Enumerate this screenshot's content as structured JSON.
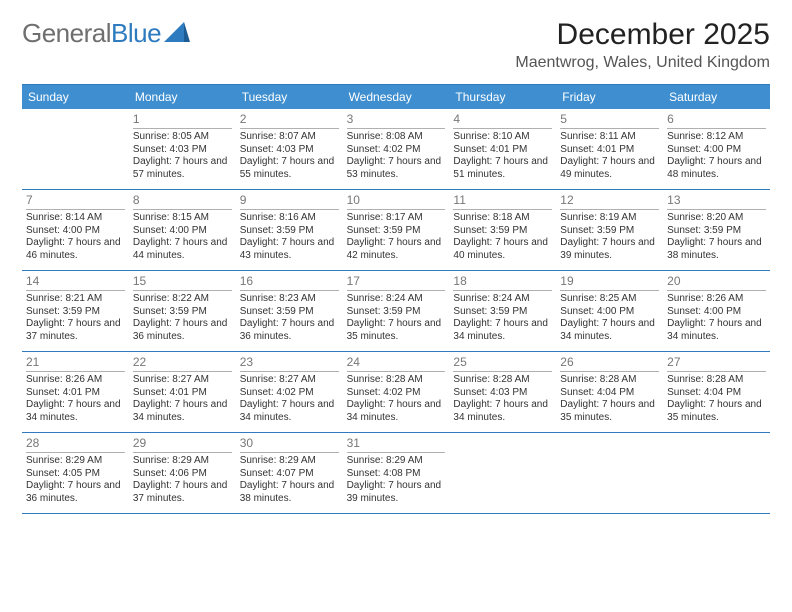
{
  "brand": {
    "part1": "General",
    "part2": "Blue"
  },
  "title": "December 2025",
  "location": "Maentwrog, Wales, United Kingdom",
  "colors": {
    "header_bg": "#3f8fd0",
    "header_text": "#ffffff",
    "rule": "#2f7bbf",
    "daynum": "#777777",
    "body_text": "#333333",
    "logo_gray": "#6f6f6f",
    "logo_blue": "#2f7bbf",
    "background": "#ffffff"
  },
  "day_labels": [
    "Sunday",
    "Monday",
    "Tuesday",
    "Wednesday",
    "Thursday",
    "Friday",
    "Saturday"
  ],
  "weeks": [
    [
      {
        "n": "",
        "sr": "",
        "ss": "",
        "dl": ""
      },
      {
        "n": "1",
        "sr": "Sunrise: 8:05 AM",
        "ss": "Sunset: 4:03 PM",
        "dl": "Daylight: 7 hours and 57 minutes."
      },
      {
        "n": "2",
        "sr": "Sunrise: 8:07 AM",
        "ss": "Sunset: 4:03 PM",
        "dl": "Daylight: 7 hours and 55 minutes."
      },
      {
        "n": "3",
        "sr": "Sunrise: 8:08 AM",
        "ss": "Sunset: 4:02 PM",
        "dl": "Daylight: 7 hours and 53 minutes."
      },
      {
        "n": "4",
        "sr": "Sunrise: 8:10 AM",
        "ss": "Sunset: 4:01 PM",
        "dl": "Daylight: 7 hours and 51 minutes."
      },
      {
        "n": "5",
        "sr": "Sunrise: 8:11 AM",
        "ss": "Sunset: 4:01 PM",
        "dl": "Daylight: 7 hours and 49 minutes."
      },
      {
        "n": "6",
        "sr": "Sunrise: 8:12 AM",
        "ss": "Sunset: 4:00 PM",
        "dl": "Daylight: 7 hours and 48 minutes."
      }
    ],
    [
      {
        "n": "7",
        "sr": "Sunrise: 8:14 AM",
        "ss": "Sunset: 4:00 PM",
        "dl": "Daylight: 7 hours and 46 minutes."
      },
      {
        "n": "8",
        "sr": "Sunrise: 8:15 AM",
        "ss": "Sunset: 4:00 PM",
        "dl": "Daylight: 7 hours and 44 minutes."
      },
      {
        "n": "9",
        "sr": "Sunrise: 8:16 AM",
        "ss": "Sunset: 3:59 PM",
        "dl": "Daylight: 7 hours and 43 minutes."
      },
      {
        "n": "10",
        "sr": "Sunrise: 8:17 AM",
        "ss": "Sunset: 3:59 PM",
        "dl": "Daylight: 7 hours and 42 minutes."
      },
      {
        "n": "11",
        "sr": "Sunrise: 8:18 AM",
        "ss": "Sunset: 3:59 PM",
        "dl": "Daylight: 7 hours and 40 minutes."
      },
      {
        "n": "12",
        "sr": "Sunrise: 8:19 AM",
        "ss": "Sunset: 3:59 PM",
        "dl": "Daylight: 7 hours and 39 minutes."
      },
      {
        "n": "13",
        "sr": "Sunrise: 8:20 AM",
        "ss": "Sunset: 3:59 PM",
        "dl": "Daylight: 7 hours and 38 minutes."
      }
    ],
    [
      {
        "n": "14",
        "sr": "Sunrise: 8:21 AM",
        "ss": "Sunset: 3:59 PM",
        "dl": "Daylight: 7 hours and 37 minutes."
      },
      {
        "n": "15",
        "sr": "Sunrise: 8:22 AM",
        "ss": "Sunset: 3:59 PM",
        "dl": "Daylight: 7 hours and 36 minutes."
      },
      {
        "n": "16",
        "sr": "Sunrise: 8:23 AM",
        "ss": "Sunset: 3:59 PM",
        "dl": "Daylight: 7 hours and 36 minutes."
      },
      {
        "n": "17",
        "sr": "Sunrise: 8:24 AM",
        "ss": "Sunset: 3:59 PM",
        "dl": "Daylight: 7 hours and 35 minutes."
      },
      {
        "n": "18",
        "sr": "Sunrise: 8:24 AM",
        "ss": "Sunset: 3:59 PM",
        "dl": "Daylight: 7 hours and 34 minutes."
      },
      {
        "n": "19",
        "sr": "Sunrise: 8:25 AM",
        "ss": "Sunset: 4:00 PM",
        "dl": "Daylight: 7 hours and 34 minutes."
      },
      {
        "n": "20",
        "sr": "Sunrise: 8:26 AM",
        "ss": "Sunset: 4:00 PM",
        "dl": "Daylight: 7 hours and 34 minutes."
      }
    ],
    [
      {
        "n": "21",
        "sr": "Sunrise: 8:26 AM",
        "ss": "Sunset: 4:01 PM",
        "dl": "Daylight: 7 hours and 34 minutes."
      },
      {
        "n": "22",
        "sr": "Sunrise: 8:27 AM",
        "ss": "Sunset: 4:01 PM",
        "dl": "Daylight: 7 hours and 34 minutes."
      },
      {
        "n": "23",
        "sr": "Sunrise: 8:27 AM",
        "ss": "Sunset: 4:02 PM",
        "dl": "Daylight: 7 hours and 34 minutes."
      },
      {
        "n": "24",
        "sr": "Sunrise: 8:28 AM",
        "ss": "Sunset: 4:02 PM",
        "dl": "Daylight: 7 hours and 34 minutes."
      },
      {
        "n": "25",
        "sr": "Sunrise: 8:28 AM",
        "ss": "Sunset: 4:03 PM",
        "dl": "Daylight: 7 hours and 34 minutes."
      },
      {
        "n": "26",
        "sr": "Sunrise: 8:28 AM",
        "ss": "Sunset: 4:04 PM",
        "dl": "Daylight: 7 hours and 35 minutes."
      },
      {
        "n": "27",
        "sr": "Sunrise: 8:28 AM",
        "ss": "Sunset: 4:04 PM",
        "dl": "Daylight: 7 hours and 35 minutes."
      }
    ],
    [
      {
        "n": "28",
        "sr": "Sunrise: 8:29 AM",
        "ss": "Sunset: 4:05 PM",
        "dl": "Daylight: 7 hours and 36 minutes."
      },
      {
        "n": "29",
        "sr": "Sunrise: 8:29 AM",
        "ss": "Sunset: 4:06 PM",
        "dl": "Daylight: 7 hours and 37 minutes."
      },
      {
        "n": "30",
        "sr": "Sunrise: 8:29 AM",
        "ss": "Sunset: 4:07 PM",
        "dl": "Daylight: 7 hours and 38 minutes."
      },
      {
        "n": "31",
        "sr": "Sunrise: 8:29 AM",
        "ss": "Sunset: 4:08 PM",
        "dl": "Daylight: 7 hours and 39 minutes."
      },
      {
        "n": "",
        "sr": "",
        "ss": "",
        "dl": ""
      },
      {
        "n": "",
        "sr": "",
        "ss": "",
        "dl": ""
      },
      {
        "n": "",
        "sr": "",
        "ss": "",
        "dl": ""
      }
    ]
  ]
}
